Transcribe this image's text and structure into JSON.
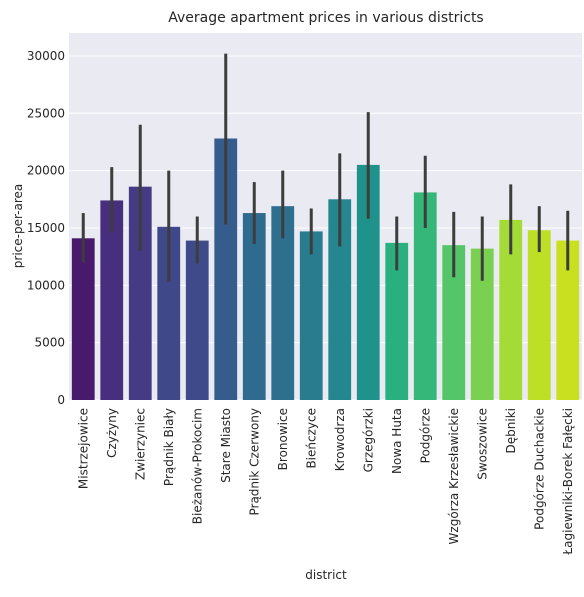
{
  "chart_data": {
    "type": "bar",
    "title": "Average apartment prices in various districts",
    "xlabel": "district",
    "ylabel": "price-per-area",
    "ylim": [
      0,
      32000
    ],
    "yticks": [
      0,
      5000,
      10000,
      15000,
      20000,
      25000,
      30000
    ],
    "grid": true,
    "categories": [
      "Mistrzejowice",
      "Czyżyny",
      "Zwierzyniec",
      "Prądnik Biały",
      "Bieżanów-Prokocim",
      "Stare Miasto",
      "Prądnik Czerwony",
      "Bronowice",
      "Bieńczyce",
      "Krowodrza",
      "Grzegórzki",
      "Nowa Huta",
      "Podgórze",
      "Wzgórza Krzesławickie",
      "Swoszowice",
      "Dębniki",
      "Podgórze Duchackie",
      "Łagiewniki-Borek Fałęcki"
    ],
    "values": [
      14100,
      17400,
      18600,
      15100,
      13900,
      22800,
      16300,
      16900,
      14700,
      17500,
      20500,
      13700,
      18100,
      13500,
      13200,
      15700,
      14800,
      13900
    ],
    "ci_low": [
      12000,
      14600,
      13000,
      10300,
      11900,
      15300,
      13600,
      14100,
      12700,
      13400,
      15800,
      11300,
      15000,
      10700,
      10400,
      12700,
      12900,
      11300
    ],
    "ci_high": [
      16300,
      20300,
      24000,
      20000,
      16000,
      30200,
      19000,
      20000,
      16700,
      21500,
      25100,
      16000,
      21300,
      16400,
      16000,
      18800,
      16900,
      16500
    ],
    "colors": [
      "#481a6c",
      "#472f7d",
      "#453a84",
      "#3f4889",
      "#3e4a89",
      "#365c8d",
      "#2f6b8e",
      "#2e6f8e",
      "#287c8e",
      "#24868e",
      "#20928c",
      "#2ab07f",
      "#35b779",
      "#54c568",
      "#7ad151",
      "#a5db36",
      "#bddf26",
      "#c8e020"
    ],
    "error_color": "#3d3d3d",
    "plot_bg": "#eaeaf2",
    "grid_color": "#ffffff"
  }
}
